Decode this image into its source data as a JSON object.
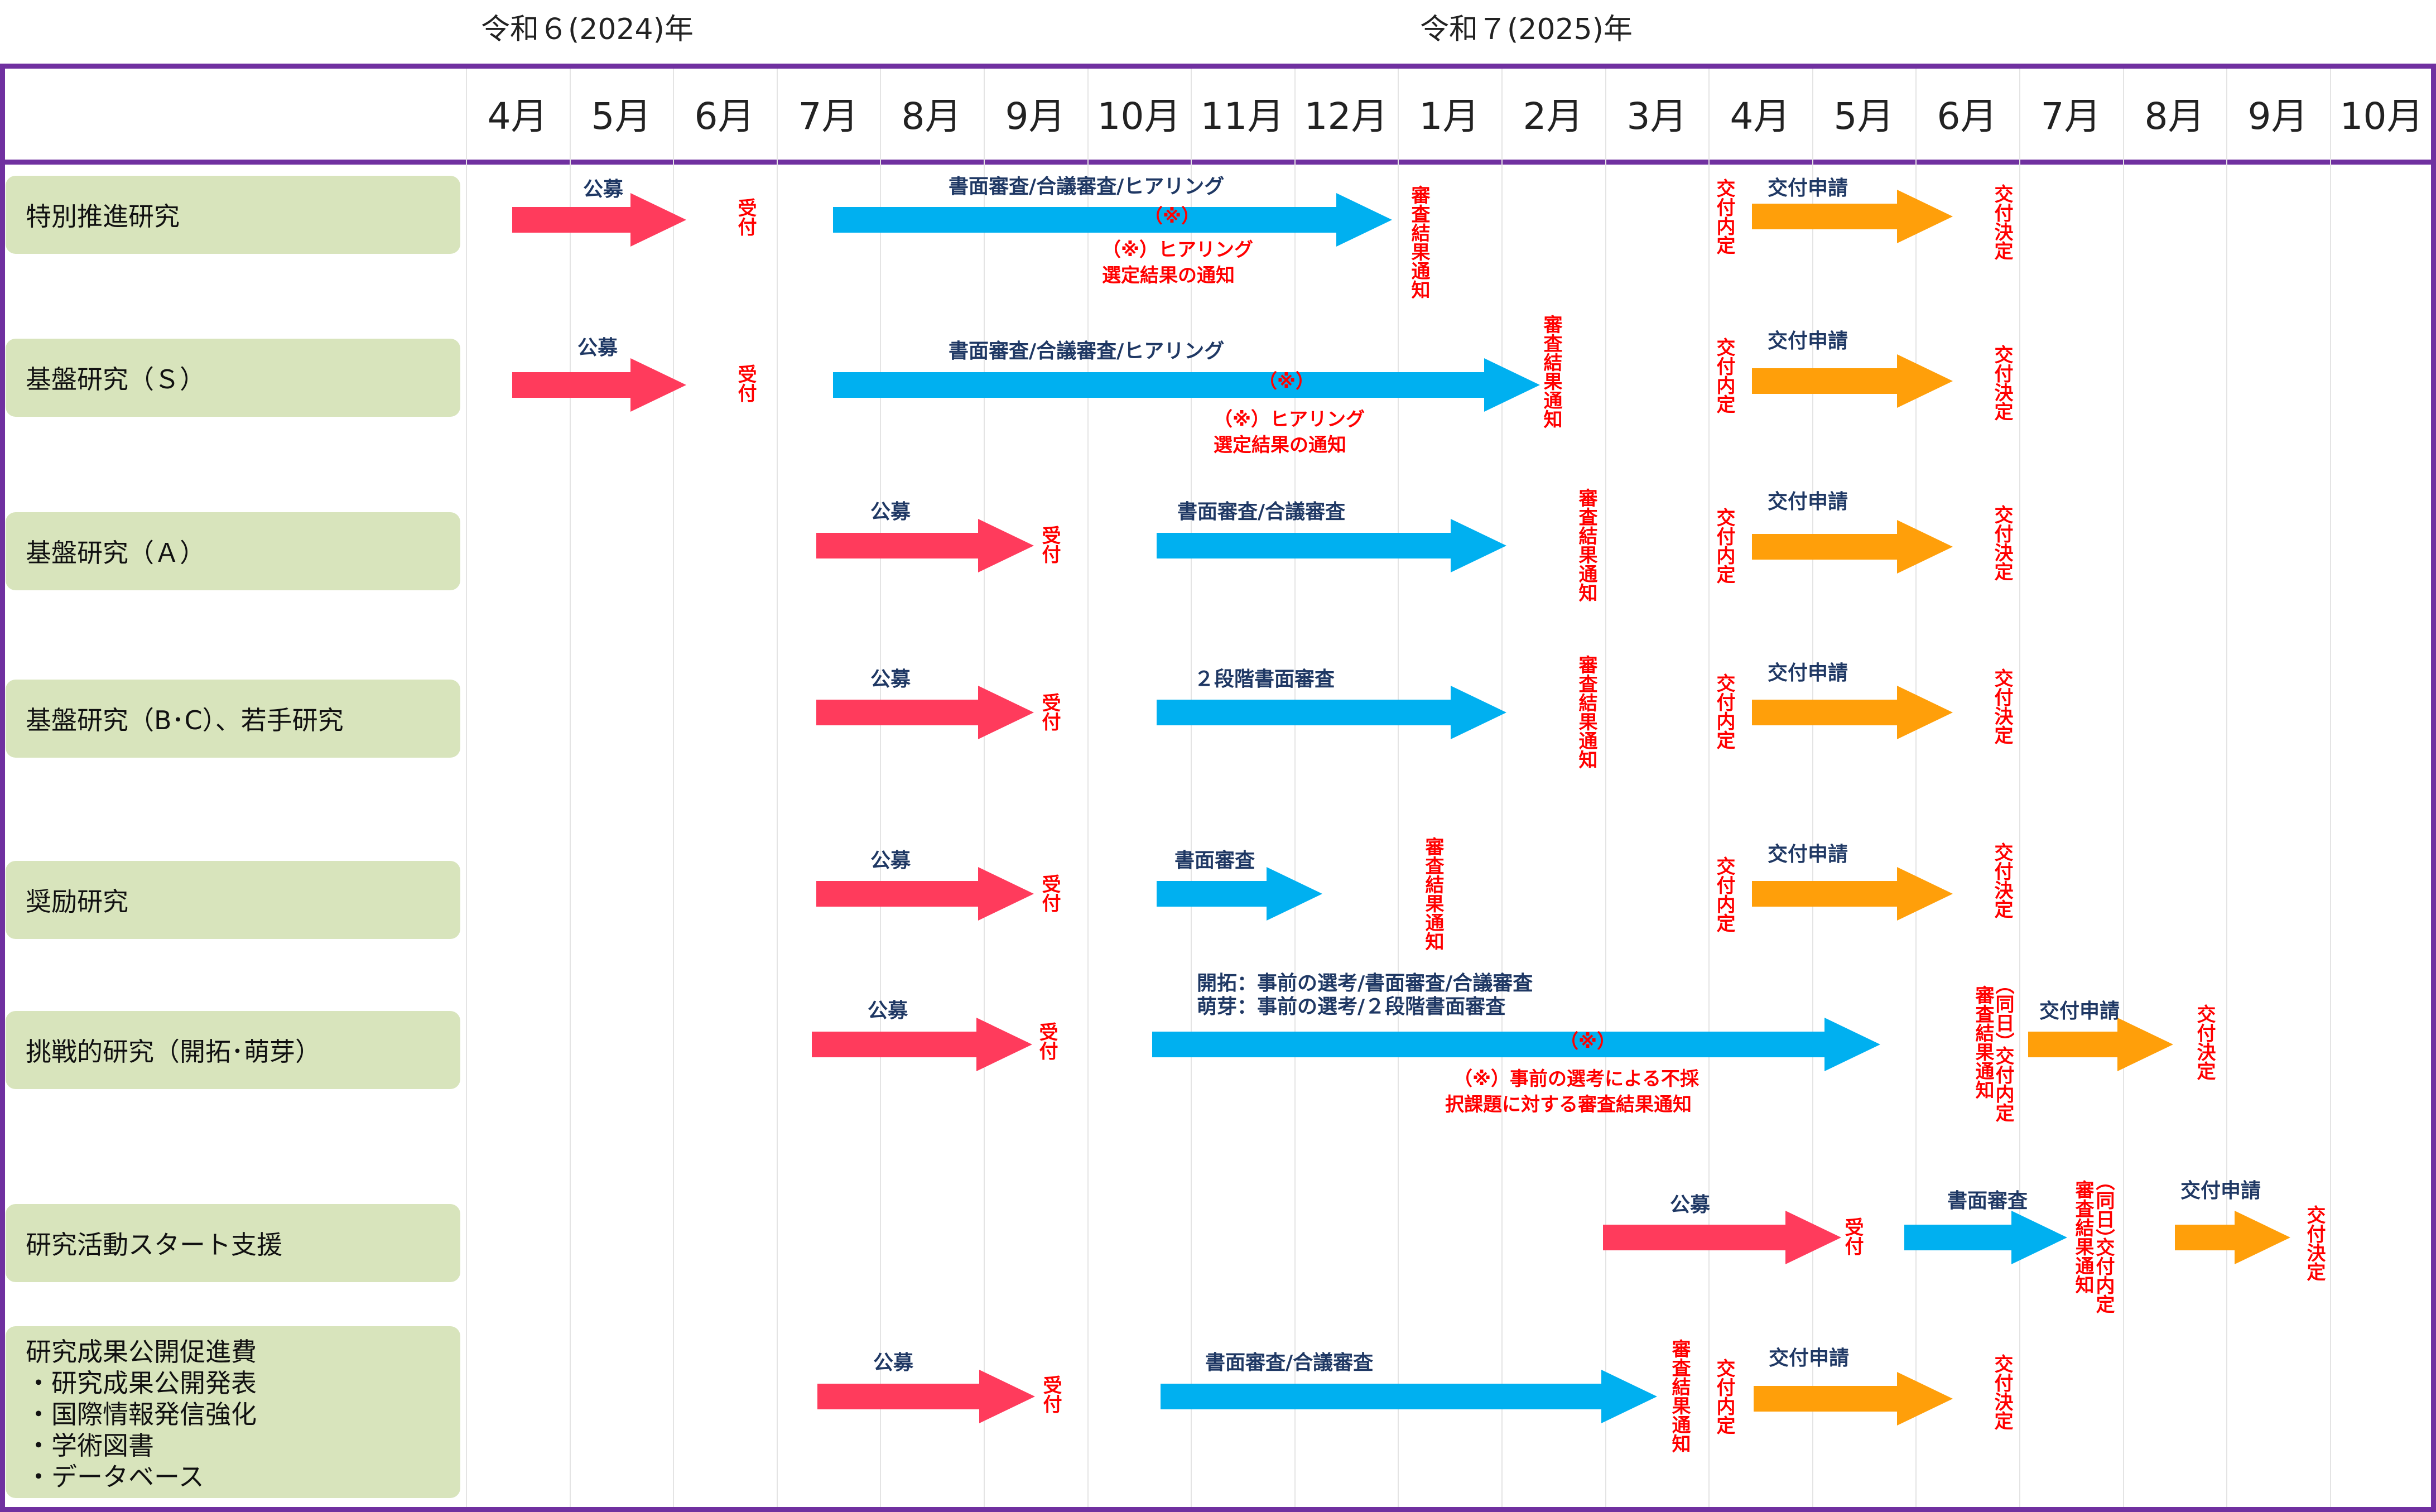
{
  "years": {
    "y2024": "令和６(2024)年",
    "y2025": "令和７(2025)年"
  },
  "months": [
    "4月",
    "5月",
    "6月",
    "7月",
    "8月",
    "9月",
    "10月",
    "11月",
    "12月",
    "1月",
    "2月",
    "3月",
    "4月",
    "5月",
    "6月",
    "7月",
    "8月",
    "9月",
    "10月"
  ],
  "colors": {
    "frame": "#7030a0",
    "label_bg": "#d8e4bc",
    "recruit": "#ff3b5c",
    "review": "#00b0f0",
    "grant": "#ff9f0a",
    "note": "#ff0000",
    "text": "#1f3864"
  },
  "rows": [
    {
      "label": "特別推進研究"
    },
    {
      "label": "基盤研究（Ｓ）"
    },
    {
      "label": "基盤研究（Ａ）"
    },
    {
      "label": "基盤研究（B･C）、若手研究"
    },
    {
      "label": "奨励研究"
    },
    {
      "label": "挑戦的研究（開拓･萌芽）"
    },
    {
      "label": "研究活動スタート支援"
    },
    {
      "label": "研究成果公開促進費",
      "sub": [
        "・研究成果公開発表",
        "・国際情報発信強化",
        "・学術図書",
        "・データベース"
      ]
    }
  ],
  "labels": {
    "recruit": "公募",
    "receipt": "受付",
    "review_hearing": "書面審査/合議審査/ヒアリング",
    "review_joint": "書面審査/合議審査",
    "review_two_stage": "２段階書面審査",
    "review_written": "書面審査",
    "grant_apply": "交付申請",
    "grant_informal": "交付内定",
    "grant_decision": "交付決定",
    "result_notice": "審査結果通知",
    "asterisk": "（※）",
    "hearing_note_1": "（※）ヒアリング",
    "hearing_note_2": "選定結果の通知",
    "challenge_line_1": "開拓：事前の選考/書面審査/合議審査",
    "challenge_line_2": "萌芽：事前の選考/２段階書面審査",
    "challenge_note_1": "（※）事前の選考による不採",
    "challenge_note_2": "択課題に対する審査結果通知",
    "same_day": "（同日）",
    "same_day_a": "審査結果通知",
    "same_day_b": "交付内定"
  }
}
